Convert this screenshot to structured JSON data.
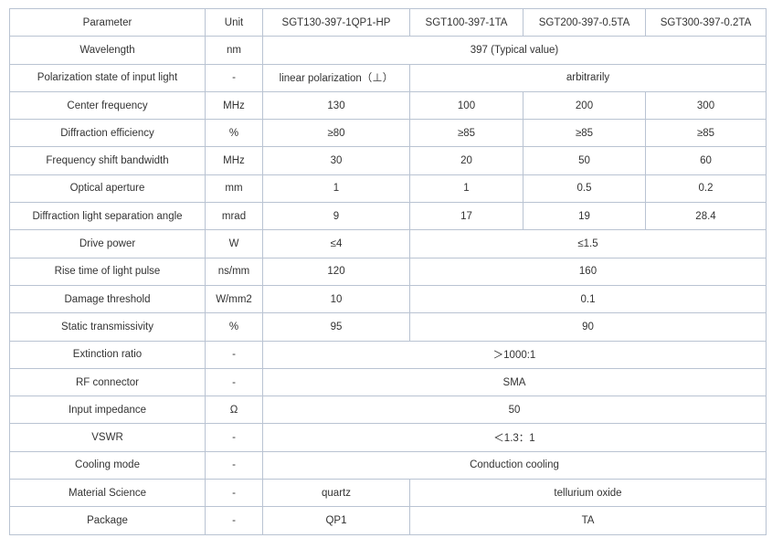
{
  "table": {
    "rows": [
      {
        "name": "header",
        "cells": [
          {
            "t": "Parameter",
            "s": 1
          },
          {
            "t": "Unit",
            "s": 1
          },
          {
            "t": "SGT130-397-1QP1-HP",
            "s": 1
          },
          {
            "t": "SGT100-397-1TA",
            "s": 1
          },
          {
            "t": "SGT200-397-0.5TA",
            "s": 1
          },
          {
            "t": "SGT300-397-0.2TA",
            "s": 1
          }
        ]
      },
      {
        "name": "wavelength",
        "cells": [
          {
            "t": "Wavelength",
            "s": 1
          },
          {
            "t": "nm",
            "s": 1
          },
          {
            "t": "397 (Typical value)",
            "s": 4
          }
        ]
      },
      {
        "name": "polarization",
        "cells": [
          {
            "t": "Polarization state of input light",
            "s": 1
          },
          {
            "t": "-",
            "s": 1
          },
          {
            "t": "linear polarization（⊥）",
            "s": 1
          },
          {
            "t": "arbitrarily",
            "s": 3
          }
        ]
      },
      {
        "name": "center-frequency",
        "cells": [
          {
            "t": "Center frequency",
            "s": 1
          },
          {
            "t": "MHz",
            "s": 1
          },
          {
            "t": "130",
            "s": 1
          },
          {
            "t": "100",
            "s": 1
          },
          {
            "t": "200",
            "s": 1
          },
          {
            "t": "300",
            "s": 1
          }
        ]
      },
      {
        "name": "diffraction-efficiency",
        "cells": [
          {
            "t": "Diffraction efficiency",
            "s": 1
          },
          {
            "t": "%",
            "s": 1
          },
          {
            "t": "≥80",
            "s": 1
          },
          {
            "t": "≥85",
            "s": 1
          },
          {
            "t": "≥85",
            "s": 1
          },
          {
            "t": "≥85",
            "s": 1
          }
        ]
      },
      {
        "name": "frequency-shift-bandwidth",
        "cells": [
          {
            "t": "Frequency shift bandwidth",
            "s": 1
          },
          {
            "t": "MHz",
            "s": 1
          },
          {
            "t": "30",
            "s": 1
          },
          {
            "t": "20",
            "s": 1
          },
          {
            "t": "50",
            "s": 1
          },
          {
            "t": "60",
            "s": 1
          }
        ]
      },
      {
        "name": "optical-aperture",
        "cells": [
          {
            "t": "Optical aperture",
            "s": 1
          },
          {
            "t": "mm",
            "s": 1
          },
          {
            "t": "1",
            "s": 1
          },
          {
            "t": "1",
            "s": 1
          },
          {
            "t": "0.5",
            "s": 1
          },
          {
            "t": "0.2",
            "s": 1
          }
        ]
      },
      {
        "name": "separation-angle",
        "cells": [
          {
            "t": "Diffraction light separation angle",
            "s": 1
          },
          {
            "t": "mrad",
            "s": 1
          },
          {
            "t": "9",
            "s": 1
          },
          {
            "t": "17",
            "s": 1
          },
          {
            "t": "19",
            "s": 1
          },
          {
            "t": "28.4",
            "s": 1
          }
        ]
      },
      {
        "name": "drive-power",
        "cells": [
          {
            "t": "Drive power",
            "s": 1
          },
          {
            "t": "W",
            "s": 1
          },
          {
            "t": "≤4",
            "s": 1
          },
          {
            "t": "≤1.5",
            "s": 3
          }
        ]
      },
      {
        "name": "rise-time",
        "cells": [
          {
            "t": "Rise time of light pulse",
            "s": 1
          },
          {
            "t": "ns/mm",
            "s": 1
          },
          {
            "t": "120",
            "s": 1
          },
          {
            "t": "160",
            "s": 3
          }
        ]
      },
      {
        "name": "damage-threshold",
        "cells": [
          {
            "t": "Damage threshold",
            "s": 1
          },
          {
            "t": "W/mm2",
            "s": 1
          },
          {
            "t": "10",
            "s": 1
          },
          {
            "t": "0.1",
            "s": 3
          }
        ]
      },
      {
        "name": "static-transmissivity",
        "cells": [
          {
            "t": "Static transmissivity",
            "s": 1
          },
          {
            "t": "%",
            "s": 1
          },
          {
            "t": "95",
            "s": 1
          },
          {
            "t": "90",
            "s": 3
          }
        ]
      },
      {
        "name": "extinction-ratio",
        "cells": [
          {
            "t": "Extinction ratio",
            "s": 1
          },
          {
            "t": "-",
            "s": 1
          },
          {
            "t": "＞1000:1",
            "s": 4
          }
        ]
      },
      {
        "name": "rf-connector",
        "cells": [
          {
            "t": "RF connector",
            "s": 1
          },
          {
            "t": "-",
            "s": 1
          },
          {
            "t": "SMA",
            "s": 4
          }
        ]
      },
      {
        "name": "input-impedance",
        "cells": [
          {
            "t": "Input impedance",
            "s": 1
          },
          {
            "t": "Ω",
            "s": 1
          },
          {
            "t": "50",
            "s": 4
          }
        ]
      },
      {
        "name": "vswr",
        "cells": [
          {
            "t": "VSWR",
            "s": 1
          },
          {
            "t": "-",
            "s": 1
          },
          {
            "t": "＜1.3：1",
            "s": 4
          }
        ]
      },
      {
        "name": "cooling-mode",
        "cells": [
          {
            "t": "Cooling mode",
            "s": 1
          },
          {
            "t": "-",
            "s": 1
          },
          {
            "t": "Conduction cooling",
            "s": 4
          }
        ]
      },
      {
        "name": "material-science",
        "cells": [
          {
            "t": "Material Science",
            "s": 1
          },
          {
            "t": "-",
            "s": 1
          },
          {
            "t": "quartz",
            "s": 1
          },
          {
            "t": "tellurium oxide",
            "s": 3
          }
        ]
      },
      {
        "name": "package",
        "cells": [
          {
            "t": "Package",
            "s": 1
          },
          {
            "t": "-",
            "s": 1
          },
          {
            "t": "QP1",
            "s": 1
          },
          {
            "t": "TA",
            "s": 3
          }
        ]
      }
    ]
  }
}
